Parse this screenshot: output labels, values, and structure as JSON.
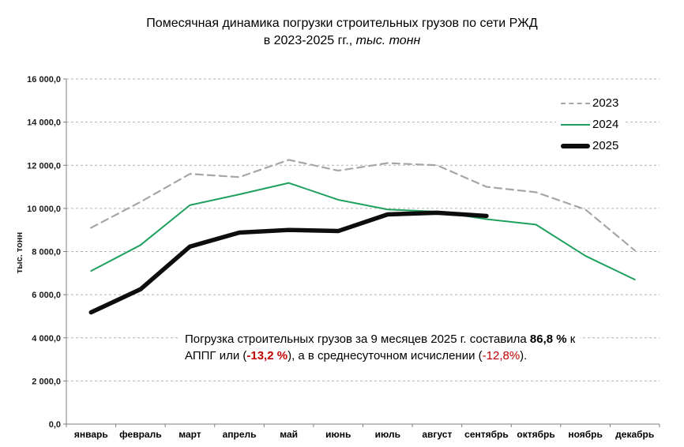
{
  "title": {
    "line1": "Помесячная динамика  погрузки строительных грузов по сети РЖД",
    "line2_prefix": "в 2023-2025 гг., ",
    "line2_italic": "тыс. тонн"
  },
  "annotation": {
    "line1_text": "Погрузка строительных грузов за 9 месяцев  2025 г. составила ",
    "line1_bold": "86,8 %",
    "line1_suffix": " к",
    "line2_part1": "АППГ или (",
    "line2_bold_red": "-13,2 %",
    "line2_part2": "),  а в среднесуточном исчислении (",
    "line2_red": "-12,8%",
    "line2_part3": ")."
  },
  "colors": {
    "series_2023": "#a6a6a6",
    "series_2024": "#1fa05f",
    "series_2025": "#0d0d0d",
    "gridline": "#b3b3b3",
    "axis": "#7f7f7f",
    "negative_red": "#c00000"
  },
  "chart_data": {
    "type": "line",
    "title": "Помесячная динамика погрузки строительных грузов по сети РЖД в 2023-2025 гг., тыс. тонн",
    "xlabel": "",
    "ylabel": "тыс. тонн",
    "ylim": [
      0,
      16000
    ],
    "y_step": 2000,
    "grid": "horizontal-dashed",
    "legend_position": "top-right",
    "y_tick_labels": [
      "0,0",
      "2 000,0",
      "4 000,0",
      "6 000,0",
      "8 000,0",
      "10 000,0",
      "12 000,0",
      "14 000,0",
      "16 000,0"
    ],
    "categories": [
      "январь",
      "февраль",
      "март",
      "апрель",
      "май",
      "июнь",
      "июль",
      "август",
      "сентябрь",
      "октябрь",
      "ноябрь",
      "декабрь"
    ],
    "series": [
      {
        "name": "2023",
        "style": "dashed",
        "color": "#a6a6a6",
        "width": 2.2,
        "values": [
          9100,
          10300,
          11600,
          11450,
          12250,
          11750,
          12100,
          12000,
          11000,
          10750,
          9950,
          8050
        ]
      },
      {
        "name": "2024",
        "style": "solid",
        "color": "#1fa05f",
        "width": 2,
        "values": [
          7100,
          8300,
          10150,
          10650,
          11180,
          10400,
          9950,
          9850,
          9500,
          9250,
          7800,
          6700
        ]
      },
      {
        "name": "2025",
        "style": "solid",
        "color": "#0d0d0d",
        "width": 5.5,
        "values": [
          5180,
          6250,
          8230,
          8880,
          9000,
          8950,
          9720,
          9800,
          9650
        ]
      }
    ]
  }
}
